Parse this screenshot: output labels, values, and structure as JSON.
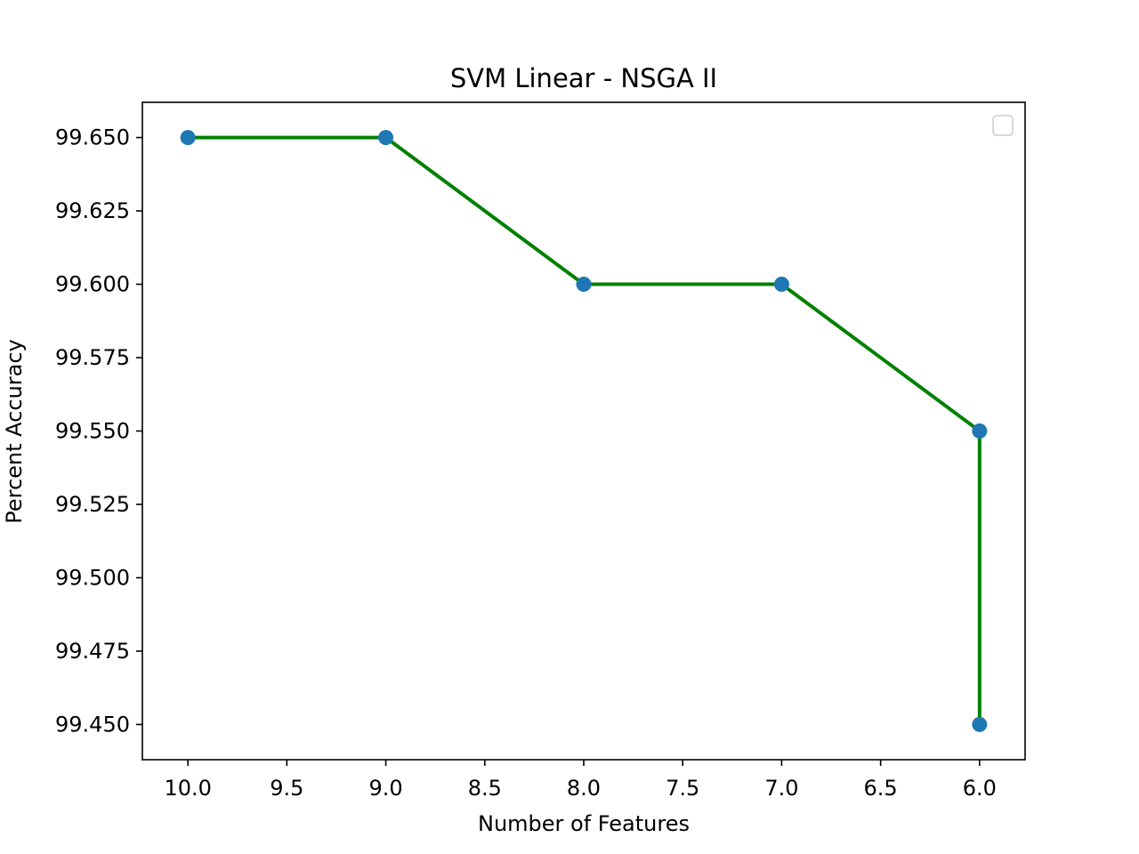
{
  "chart_data": {
    "type": "line",
    "title": "SVM Linear - NSGA II",
    "xlabel": "Number of Features",
    "ylabel": "Percent Accuracy",
    "x_inverted": true,
    "xlim": [
      10.23,
      5.77
    ],
    "ylim": [
      99.438,
      99.662
    ],
    "xticks": [
      10.0,
      9.5,
      9.0,
      8.5,
      8.0,
      7.5,
      7.0,
      6.5,
      6.0
    ],
    "xtick_labels": [
      "10.0",
      "9.5",
      "9.0",
      "8.5",
      "8.0",
      "7.5",
      "7.0",
      "6.5",
      "6.0"
    ],
    "yticks": [
      99.45,
      99.475,
      99.5,
      99.525,
      99.55,
      99.575,
      99.6,
      99.625,
      99.65
    ],
    "ytick_labels": [
      "99.450",
      "99.475",
      "99.500",
      "99.525",
      "99.550",
      "99.575",
      "99.600",
      "99.625",
      "99.650"
    ],
    "grid": false,
    "legend": "top-right (empty)",
    "series": [
      {
        "x": [
          10,
          9,
          8,
          7,
          6,
          6
        ],
        "y": [
          99.65,
          99.65,
          99.6,
          99.6,
          99.55,
          99.45
        ],
        "line_color": "#008000",
        "marker_color": "#1f77b4"
      }
    ]
  }
}
